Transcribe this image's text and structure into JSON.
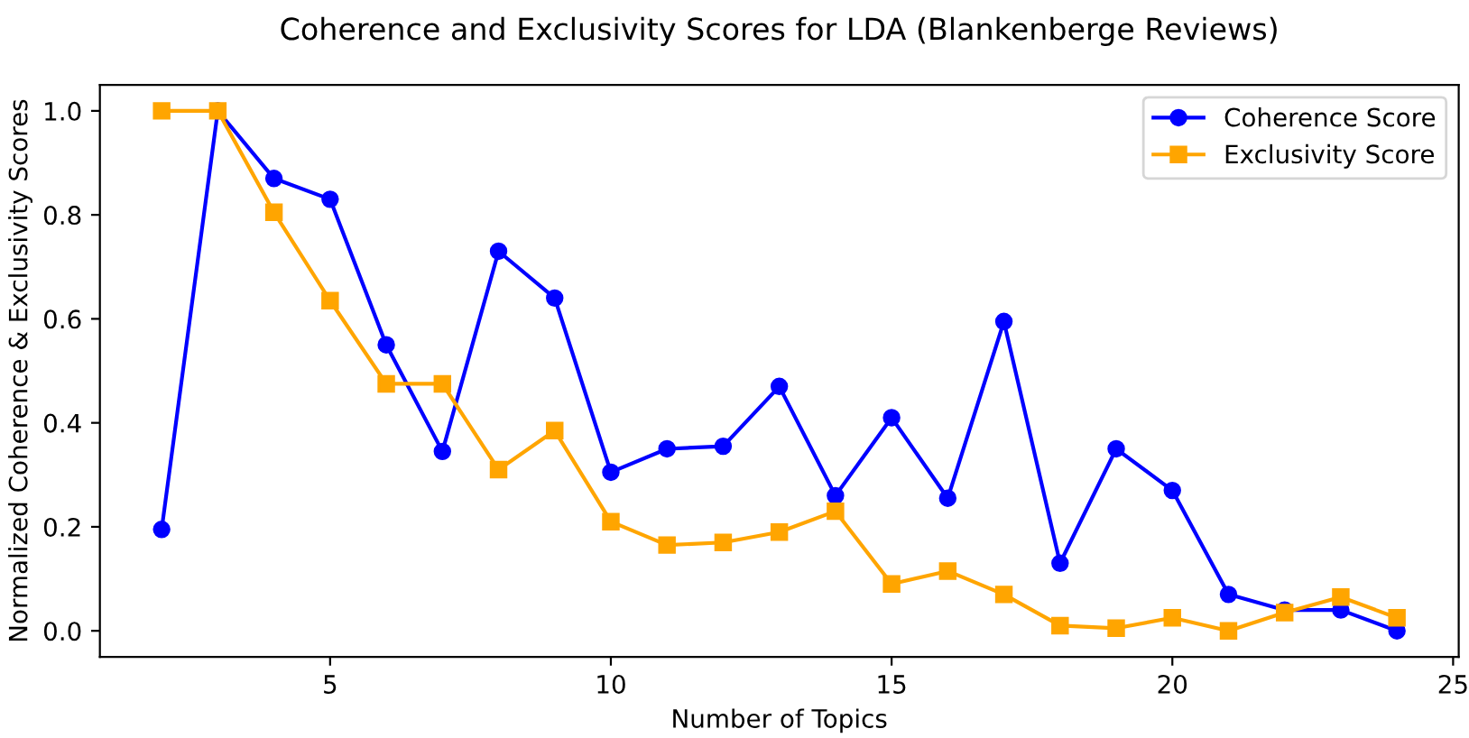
{
  "chart_data": {
    "type": "line",
    "title": "Coherence and Exclusivity Scores for LDA (Blankenberge Reviews)",
    "xlabel": "Number of Topics",
    "ylabel": "Normalized Coherence & Exclusivity Scores",
    "x": [
      2,
      3,
      4,
      5,
      6,
      7,
      8,
      9,
      10,
      11,
      12,
      13,
      14,
      15,
      16,
      17,
      18,
      19,
      20,
      21,
      22,
      23,
      24
    ],
    "series": [
      {
        "name": "Coherence Score",
        "color": "#0000ff",
        "marker": "circle",
        "values": [
          0.195,
          1.0,
          0.87,
          0.83,
          0.55,
          0.345,
          0.73,
          0.64,
          0.305,
          0.35,
          0.355,
          0.47,
          0.26,
          0.41,
          0.255,
          0.595,
          0.13,
          0.35,
          0.27,
          0.07,
          0.04,
          0.04,
          0.0
        ]
      },
      {
        "name": "Exclusivity Score",
        "color": "#ffa500",
        "marker": "square",
        "values": [
          1.0,
          1.0,
          0.805,
          0.635,
          0.475,
          0.475,
          0.31,
          0.385,
          0.21,
          0.165,
          0.17,
          0.19,
          0.23,
          0.09,
          0.115,
          0.07,
          0.01,
          0.005,
          0.025,
          0.0,
          0.035,
          0.065,
          0.025
        ]
      }
    ],
    "xlim": [
      0.9,
      25.1
    ],
    "xticks": [
      5,
      10,
      15,
      20,
      25
    ],
    "ylim": [
      -0.05,
      1.05
    ],
    "yticks": [
      {
        "value": 0,
        "label": "0.0"
      },
      0.2,
      0.4,
      0.6,
      0.8,
      {
        "value": 1,
        "label": "1.0"
      }
    ],
    "legend": "top right",
    "grid": false,
    "line_style": "solid"
  }
}
